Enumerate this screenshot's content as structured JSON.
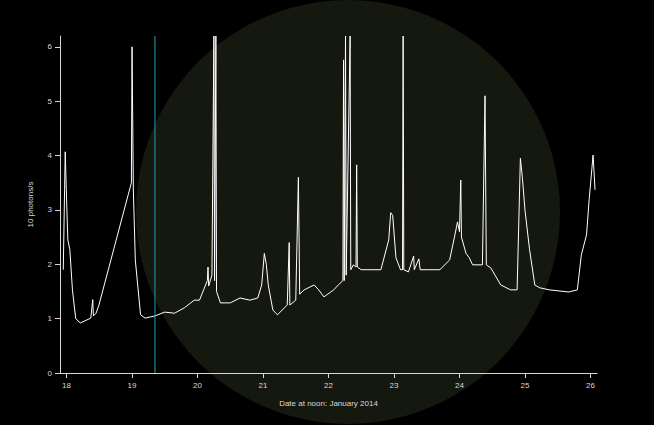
{
  "chart_data": {
    "type": "line",
    "x_label": "Date at noon: January 2014",
    "y_label": "10 photons/s",
    "xlim": [
      17.9,
      26.1
    ],
    "xticks": [
      18,
      19,
      20,
      21,
      22,
      23,
      24,
      25,
      26
    ],
    "ylim": [
      0,
      6.2
    ],
    "yticks": [
      0,
      1,
      2,
      3,
      4,
      5,
      6
    ],
    "grid": false,
    "series": [
      {
        "color": "#ffffff",
        "line_style": "solid",
        "x": [
          17.95,
          17.97,
          17.98,
          18.0,
          18.02,
          18.05,
          18.09,
          18.14,
          18.21,
          18.37,
          18.4,
          18.41,
          18.45,
          18.49,
          18.99,
          19.0,
          19.02,
          19.05,
          19.13,
          19.2,
          19.35,
          19.5,
          19.65,
          19.8,
          19.95,
          20.03,
          20.1,
          20.15,
          20.16,
          20.17,
          20.22,
          20.25,
          20.26,
          20.28,
          20.29,
          20.35,
          20.5,
          20.65,
          20.8,
          20.92,
          20.98,
          21.02,
          21.05,
          21.08,
          21.15,
          21.22,
          21.37,
          21.4,
          21.41,
          21.5,
          21.54,
          21.56,
          21.63,
          21.78,
          21.85,
          21.93,
          22.08,
          22.15,
          22.22,
          22.23,
          22.24,
          22.26,
          22.27,
          22.33,
          22.34,
          22.38,
          22.42,
          22.43,
          22.44,
          22.5,
          22.65,
          22.8,
          22.92,
          22.95,
          22.98,
          23.03,
          23.1,
          23.13,
          23.14,
          23.15,
          23.22,
          23.3,
          23.31,
          23.38,
          23.4,
          23.53,
          23.7,
          23.85,
          23.93,
          23.97,
          24.0,
          24.02,
          24.03,
          24.1,
          24.15,
          24.2,
          24.35,
          24.39,
          24.41,
          24.48,
          24.63,
          24.78,
          24.88,
          24.93,
          24.96,
          25.0,
          25.07,
          25.15,
          25.22,
          25.37,
          25.52,
          25.67,
          25.8,
          25.86,
          25.94,
          25.98,
          26.04,
          26.07
        ],
        "values": [
          1.9,
          3.37,
          4.07,
          3.2,
          2.45,
          2.27,
          1.53,
          1.0,
          0.92,
          1.01,
          1.35,
          1.05,
          1.1,
          1.23,
          3.5,
          6.0,
          3.37,
          2.08,
          1.07,
          1.01,
          1.05,
          1.12,
          1.1,
          1.2,
          1.34,
          1.34,
          1.55,
          1.7,
          1.95,
          1.6,
          1.8,
          6.2,
          1.7,
          6.2,
          1.5,
          1.29,
          1.29,
          1.38,
          1.34,
          1.38,
          1.62,
          2.2,
          2.0,
          1.62,
          1.16,
          1.07,
          1.25,
          2.4,
          1.25,
          1.34,
          3.6,
          1.45,
          1.53,
          1.62,
          1.53,
          1.4,
          1.53,
          1.62,
          1.7,
          5.76,
          1.7,
          6.2,
          1.8,
          6.2,
          1.9,
          1.99,
          1.95,
          3.83,
          1.95,
          1.9,
          1.9,
          1.9,
          2.45,
          2.95,
          2.9,
          2.12,
          1.9,
          1.9,
          6.2,
          1.9,
          1.86,
          2.15,
          1.9,
          2.1,
          1.9,
          1.9,
          1.9,
          2.08,
          2.54,
          2.78,
          2.6,
          3.55,
          2.5,
          2.2,
          2.12,
          1.99,
          1.99,
          5.1,
          1.99,
          1.93,
          1.62,
          1.53,
          1.53,
          3.95,
          3.6,
          3.0,
          2.27,
          1.62,
          1.57,
          1.53,
          1.51,
          1.49,
          1.53,
          2.17,
          2.54,
          3.19,
          4.01,
          3.37
        ]
      },
      {
        "color": "#1fa3b5",
        "line_style": "solid",
        "x": [
          19.35,
          19.35
        ],
        "values": [
          0,
          6.2
        ]
      }
    ]
  }
}
